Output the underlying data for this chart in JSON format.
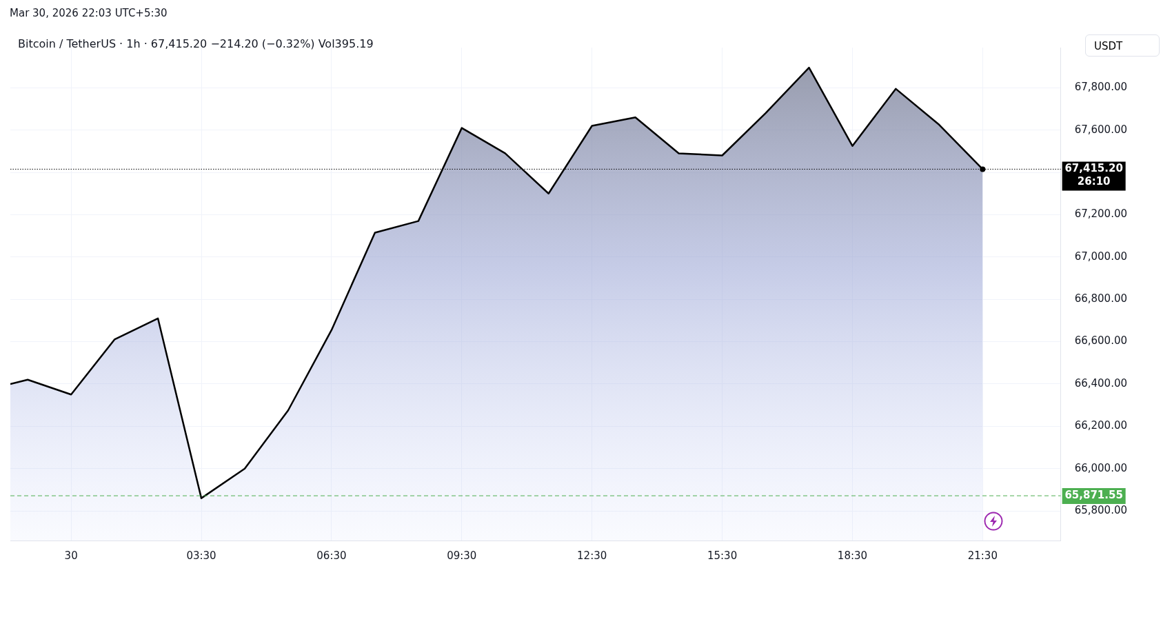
{
  "chart_data": {
    "type": "area",
    "title": "Bitcoin / TetherUS · 1h · 67,415.20 −214.20 (−0.32%) Vol395.19",
    "annotations": [
      "Mar 30, 2026 22:03 UTC+5:30",
      "USDT"
    ],
    "x": [
      "2026-03-29T23:06",
      "2026-03-29T23:30",
      "2026-03-30T00:30",
      "2026-03-30T01:30",
      "2026-03-30T02:30",
      "2026-03-30T03:30",
      "2026-03-30T04:30",
      "2026-03-30T05:30",
      "2026-03-30T06:30",
      "2026-03-30T07:30",
      "2026-03-30T08:30",
      "2026-03-30T09:30",
      "2026-03-30T10:30",
      "2026-03-30T11:30",
      "2026-03-30T12:30",
      "2026-03-30T13:30",
      "2026-03-30T14:30",
      "2026-03-30T15:30",
      "2026-03-30T16:30",
      "2026-03-30T17:30",
      "2026-03-30T18:30",
      "2026-03-30T19:30",
      "2026-03-30T20:30",
      "2026-03-30T21:30"
    ],
    "series": [
      {
        "color": "#000000",
        "values": [
          66400,
          66420,
          66350,
          66610,
          66710,
          65860,
          66000,
          66275,
          66655,
          67115,
          67170,
          67610,
          67490,
          67300,
          67620,
          67660,
          67490,
          67480,
          67680,
          67895,
          67525,
          67795,
          67625,
          67415
        ]
      }
    ],
    "xlim": [
      "2026-03-29T23:06",
      "2026-03-30T23:18"
    ],
    "xticks": [
      {
        "value": "2026-03-30T00:30",
        "label": "30"
      },
      {
        "value": "2026-03-30T03:30",
        "label": "03:30"
      },
      {
        "value": "2026-03-30T06:30",
        "label": "06:30"
      },
      {
        "value": "2026-03-30T09:30",
        "label": "09:30"
      },
      {
        "value": "2026-03-30T12:30",
        "label": "12:30"
      },
      {
        "value": "2026-03-30T15:30",
        "label": "15:30"
      },
      {
        "value": "2026-03-30T18:30",
        "label": "18:30"
      },
      {
        "value": "2026-03-30T21:30",
        "label": "21:30"
      }
    ],
    "ylim": [
      65660,
      67990
    ],
    "yticks": [
      {
        "value": 65800,
        "label": "65,800.00"
      },
      {
        "value": 66000,
        "label": "66,000.00"
      },
      {
        "value": 66200,
        "label": "66,200.00"
      },
      {
        "value": 66400,
        "label": "66,400.00"
      },
      {
        "value": 66600,
        "label": "66,600.00"
      },
      {
        "value": 66800,
        "label": "66,800.00"
      },
      {
        "value": 67000,
        "label": "67,000.00"
      },
      {
        "value": 67200,
        "label": "67,200.00"
      },
      {
        "value": 67400,
        "label": null
      },
      {
        "value": 67600,
        "label": "67,600.00"
      },
      {
        "value": 67800,
        "label": "67,800.00"
      }
    ],
    "ref_lines": [
      {
        "axis": "y",
        "value": 67415.2,
        "label": "67,415.20 26:10",
        "color": "#000000",
        "line_style": "dotted"
      },
      {
        "axis": "y",
        "value": 65871.55,
        "label": "65,871.55",
        "color": "#4caf50",
        "line_style": "dashed"
      }
    ],
    "grid": true,
    "legend": false,
    "marker": "none",
    "line_style": "solid"
  }
}
